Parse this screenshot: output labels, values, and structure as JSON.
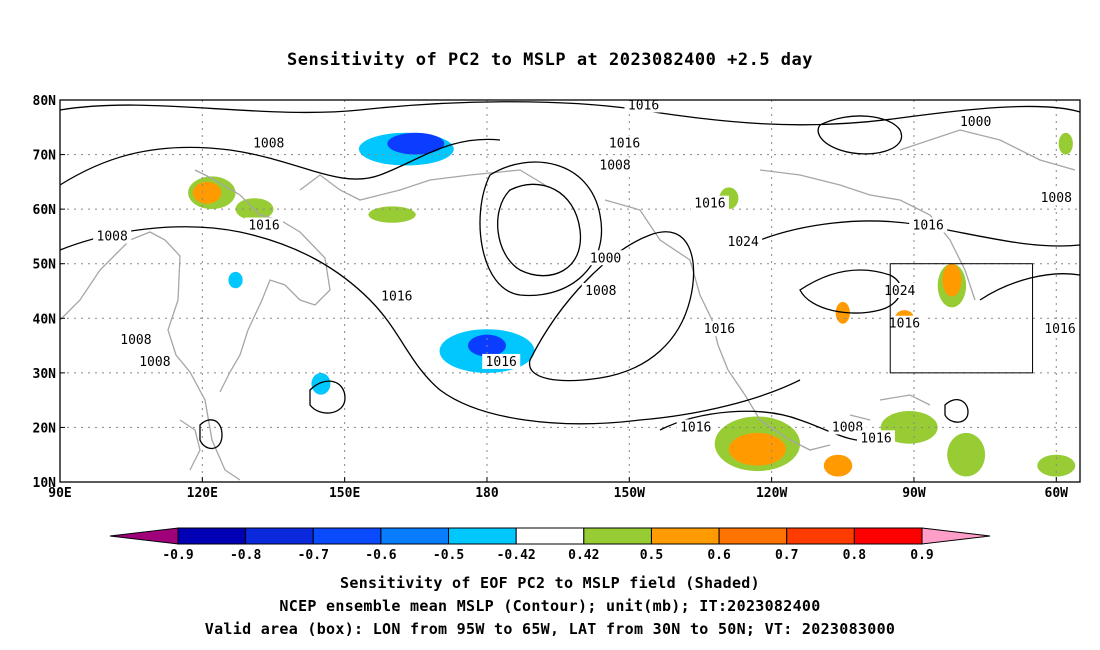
{
  "title": "Sensitivity of PC2 to MSLP at 2023082400 +2.5 day",
  "captions": [
    "Sensitivity of EOF PC2 to MSLP field (Shaded)",
    "NCEP ensemble mean MSLP (Contour); unit(mb); IT:2023082400",
    "Valid area (box): LON from 95W to 65W, LAT from 30N to 50N; VT: 2023083000"
  ],
  "map": {
    "lon_range": [
      90,
      305
    ],
    "lat_range": [
      10,
      80
    ],
    "lon_ticks": [
      {
        "lon": 90,
        "label": "90E"
      },
      {
        "lon": 120,
        "label": "120E"
      },
      {
        "lon": 150,
        "label": "150E"
      },
      {
        "lon": 180,
        "label": "180"
      },
      {
        "lon": 210,
        "label": "150W"
      },
      {
        "lon": 240,
        "label": "120W"
      },
      {
        "lon": 270,
        "label": "90W"
      },
      {
        "lon": 300,
        "label": "60W"
      }
    ],
    "lat_ticks": [
      {
        "lat": 10,
        "label": "10N"
      },
      {
        "lat": 20,
        "label": "20N"
      },
      {
        "lat": 30,
        "label": "30N"
      },
      {
        "lat": 40,
        "label": "40N"
      },
      {
        "lat": 50,
        "label": "50N"
      },
      {
        "lat": 60,
        "label": "60N"
      },
      {
        "lat": 70,
        "label": "70N"
      },
      {
        "lat": 80,
        "label": "80N"
      }
    ],
    "valid_box": {
      "lon": [
        265,
        295
      ],
      "lat": [
        30,
        50
      ]
    },
    "contour_labels": [
      {
        "text": "1016",
        "lon": 213,
        "lat": 79
      },
      {
        "text": "1008",
        "lon": 134,
        "lat": 72
      },
      {
        "text": "1016",
        "lon": 209,
        "lat": 72
      },
      {
        "text": "1008",
        "lon": 207,
        "lat": 68
      },
      {
        "text": "1000",
        "lon": 283,
        "lat": 76
      },
      {
        "text": "1016",
        "lon": 227,
        "lat": 61
      },
      {
        "text": "1008",
        "lon": 300,
        "lat": 62
      },
      {
        "text": "1016",
        "lon": 133,
        "lat": 57
      },
      {
        "text": "1016",
        "lon": 273,
        "lat": 57
      },
      {
        "text": "1008",
        "lon": 101,
        "lat": 55
      },
      {
        "text": "1024",
        "lon": 234,
        "lat": 54
      },
      {
        "text": "1000",
        "lon": 205,
        "lat": 51
      },
      {
        "text": "1008",
        "lon": 204,
        "lat": 45
      },
      {
        "text": "1024",
        "lon": 267,
        "lat": 45
      },
      {
        "text": "1016",
        "lon": 161,
        "lat": 44
      },
      {
        "text": "1016",
        "lon": 268,
        "lat": 39
      },
      {
        "text": "1016",
        "lon": 229,
        "lat": 38
      },
      {
        "text": "1016",
        "lon": 310,
        "lat": 38
      },
      {
        "text": "1008",
        "lon": 106,
        "lat": 36
      },
      {
        "text": "1008",
        "lon": 110,
        "lat": 32
      },
      {
        "text": "1016",
        "lon": 183,
        "lat": 32
      },
      {
        "text": "1016",
        "lon": 224,
        "lat": 20
      },
      {
        "text": "1008",
        "lon": 256,
        "lat": 20
      },
      {
        "text": "1016",
        "lon": 262,
        "lat": 18
      }
    ],
    "shaded_patches": [
      {
        "lon": 122,
        "lat": 63,
        "rx": 5,
        "ry": 3,
        "level": 0.5,
        "color": "#98cc35"
      },
      {
        "lon": 121,
        "lat": 63,
        "rx": 3,
        "ry": 2,
        "level": 0.6,
        "color": "#ff9b00"
      },
      {
        "lon": 131,
        "lat": 60,
        "rx": 4,
        "ry": 2,
        "level": 0.5,
        "color": "#98cc35"
      },
      {
        "lon": 163,
        "lat": 71,
        "rx": 10,
        "ry": 3,
        "level": -0.5,
        "color": "#00c8ff"
      },
      {
        "lon": 165,
        "lat": 72,
        "rx": 6,
        "ry": 2,
        "level": -0.7,
        "color": "#0a3dff"
      },
      {
        "lon": 160,
        "lat": 59,
        "rx": 5,
        "ry": 1.5,
        "level": 0.5,
        "color": "#98cc35"
      },
      {
        "lon": 180,
        "lat": 34,
        "rx": 10,
        "ry": 4,
        "level": -0.5,
        "color": "#00c8ff"
      },
      {
        "lon": 180,
        "lat": 35,
        "rx": 4,
        "ry": 2,
        "level": -0.7,
        "color": "#0a3dff"
      },
      {
        "lon": 127,
        "lat": 47,
        "rx": 1.5,
        "ry": 1.5,
        "level": -0.5,
        "color": "#00c8ff"
      },
      {
        "lon": 145,
        "lat": 28,
        "rx": 2,
        "ry": 2,
        "level": -0.5,
        "color": "#00c8ff"
      },
      {
        "lon": 237,
        "lat": 17,
        "rx": 9,
        "ry": 5,
        "level": 0.5,
        "color": "#98cc35"
      },
      {
        "lon": 237,
        "lat": 16,
        "rx": 6,
        "ry": 3,
        "level": 0.6,
        "color": "#ff9b00"
      },
      {
        "lon": 278,
        "lat": 46,
        "rx": 3,
        "ry": 4,
        "level": 0.5,
        "color": "#98cc35"
      },
      {
        "lon": 278,
        "lat": 47,
        "rx": 2,
        "ry": 3,
        "level": 0.6,
        "color": "#ff9b00"
      },
      {
        "lon": 268,
        "lat": 40,
        "rx": 2,
        "ry": 1.5,
        "level": 0.6,
        "color": "#ff9b00"
      },
      {
        "lon": 269,
        "lat": 20,
        "rx": 6,
        "ry": 3,
        "level": 0.5,
        "color": "#98cc35"
      },
      {
        "lon": 281,
        "lat": 15,
        "rx": 4,
        "ry": 4,
        "level": 0.5,
        "color": "#98cc35"
      },
      {
        "lon": 254,
        "lat": 13,
        "rx": 3,
        "ry": 2,
        "level": 0.6,
        "color": "#ff9b00"
      },
      {
        "lon": 300,
        "lat": 13,
        "rx": 4,
        "ry": 2,
        "level": 0.5,
        "color": "#98cc35"
      },
      {
        "lon": 302,
        "lat": 72,
        "rx": 1.5,
        "ry": 2,
        "level": 0.5,
        "color": "#98cc35"
      },
      {
        "lon": 231,
        "lat": 62,
        "rx": 2,
        "ry": 2,
        "level": 0.5,
        "color": "#98cc35"
      },
      {
        "lon": 255,
        "lat": 41,
        "rx": 1.5,
        "ry": 2,
        "level": 0.6,
        "color": "#ff9b00"
      }
    ]
  },
  "colorbar": {
    "labels": [
      "-0.9",
      "-0.8",
      "-0.7",
      "-0.6",
      "-0.5",
      "-0.42",
      "0.42",
      "0.5",
      "0.6",
      "0.7",
      "0.8",
      "0.9"
    ],
    "colors": [
      "#a0007a",
      "#0000b4",
      "#0a28dc",
      "#0a4bff",
      "#0a7dff",
      "#00c8ff",
      "#ffffff",
      "#98cc35",
      "#ff9b00",
      "#ff7300",
      "#ff3c00",
      "#ff0000",
      "#ff9ec7"
    ]
  }
}
